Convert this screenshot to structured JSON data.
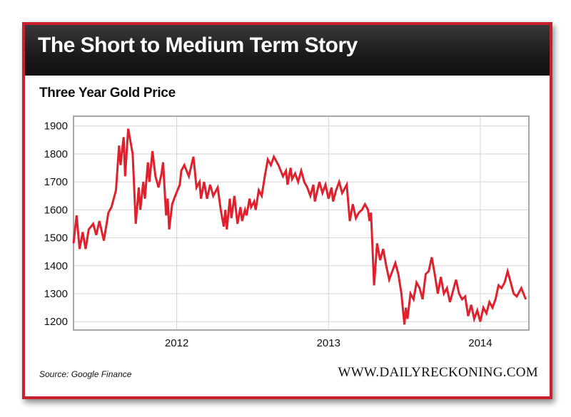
{
  "header": {
    "title": "The Short to Medium Term Story"
  },
  "footer": {
    "source": "Source:  Google Finance",
    "site": "WWW.DAILYRECKONING.COM"
  },
  "colors": {
    "line": "#e0202c",
    "border": "#c8202c",
    "grid": "#a8a8a8",
    "header_bg": "#1a1a1a"
  },
  "chart_data": {
    "type": "line",
    "title": "Three Year Gold Price",
    "xlabel": "",
    "ylabel": "",
    "ylim": [
      1170,
      1935
    ],
    "yticks": [
      1900,
      1800,
      1700,
      1600,
      1500,
      1400,
      1300,
      1200
    ],
    "xlim": [
      2011.32,
      2014.32
    ],
    "xticks": [
      {
        "label": "2012",
        "x": 2012.0
      },
      {
        "label": "2013",
        "x": 2013.0
      },
      {
        "label": "2014",
        "x": 2014.0
      }
    ],
    "grid": true,
    "series": [
      {
        "values": [
          [
            2011.32,
            1480
          ],
          [
            2011.34,
            1580
          ],
          [
            2011.36,
            1460
          ],
          [
            2011.38,
            1520
          ],
          [
            2011.4,
            1460
          ],
          [
            2011.42,
            1530
          ],
          [
            2011.45,
            1550
          ],
          [
            2011.47,
            1510
          ],
          [
            2011.49,
            1560
          ],
          [
            2011.52,
            1490
          ],
          [
            2011.55,
            1590
          ],
          [
            2011.57,
            1610
          ],
          [
            2011.6,
            1670
          ],
          [
            2011.62,
            1830
          ],
          [
            2011.63,
            1760
          ],
          [
            2011.65,
            1860
          ],
          [
            2011.66,
            1720
          ],
          [
            2011.68,
            1890
          ],
          [
            2011.71,
            1800
          ],
          [
            2011.73,
            1550
          ],
          [
            2011.75,
            1680
          ],
          [
            2011.76,
            1600
          ],
          [
            2011.78,
            1700
          ],
          [
            2011.79,
            1640
          ],
          [
            2011.81,
            1770
          ],
          [
            2011.82,
            1700
          ],
          [
            2011.84,
            1810
          ],
          [
            2011.86,
            1720
          ],
          [
            2011.88,
            1680
          ],
          [
            2011.9,
            1730
          ],
          [
            2011.91,
            1770
          ],
          [
            2011.93,
            1580
          ],
          [
            2011.94,
            1640
          ],
          [
            2011.95,
            1530
          ],
          [
            2011.97,
            1620
          ],
          [
            2011.99,
            1650
          ],
          [
            2012.02,
            1690
          ],
          [
            2012.03,
            1740
          ],
          [
            2012.05,
            1760
          ],
          [
            2012.08,
            1720
          ],
          [
            2012.11,
            1790
          ],
          [
            2012.13,
            1680
          ],
          [
            2012.15,
            1700
          ],
          [
            2012.16,
            1640
          ],
          [
            2012.18,
            1700
          ],
          [
            2012.2,
            1640
          ],
          [
            2012.22,
            1690
          ],
          [
            2012.24,
            1650
          ],
          [
            2012.27,
            1680
          ],
          [
            2012.29,
            1600
          ],
          [
            2012.31,
            1540
          ],
          [
            2012.32,
            1600
          ],
          [
            2012.33,
            1530
          ],
          [
            2012.35,
            1640
          ],
          [
            2012.36,
            1570
          ],
          [
            2012.38,
            1650
          ],
          [
            2012.4,
            1550
          ],
          [
            2012.42,
            1610
          ],
          [
            2012.43,
            1560
          ],
          [
            2012.45,
            1600
          ],
          [
            2012.46,
            1580
          ],
          [
            2012.48,
            1640
          ],
          [
            2012.49,
            1610
          ],
          [
            2012.51,
            1630
          ],
          [
            2012.52,
            1600
          ],
          [
            2012.54,
            1670
          ],
          [
            2012.56,
            1650
          ],
          [
            2012.58,
            1720
          ],
          [
            2012.6,
            1780
          ],
          [
            2012.62,
            1760
          ],
          [
            2012.64,
            1790
          ],
          [
            2012.67,
            1760
          ],
          [
            2012.7,
            1720
          ],
          [
            2012.72,
            1740
          ],
          [
            2012.73,
            1690
          ],
          [
            2012.75,
            1750
          ],
          [
            2012.76,
            1710
          ],
          [
            2012.78,
            1730
          ],
          [
            2012.8,
            1700
          ],
          [
            2012.82,
            1740
          ],
          [
            2012.84,
            1700
          ],
          [
            2012.86,
            1680
          ],
          [
            2012.88,
            1650
          ],
          [
            2012.9,
            1690
          ],
          [
            2012.91,
            1630
          ],
          [
            2012.94,
            1700
          ],
          [
            2012.96,
            1660
          ],
          [
            2012.98,
            1690
          ],
          [
            2013.0,
            1640
          ],
          [
            2013.02,
            1680
          ],
          [
            2013.03,
            1630
          ],
          [
            2013.05,
            1670
          ],
          [
            2013.07,
            1700
          ],
          [
            2013.09,
            1660
          ],
          [
            2013.12,
            1690
          ],
          [
            2013.14,
            1560
          ],
          [
            2013.16,
            1620
          ],
          [
            2013.18,
            1570
          ],
          [
            2013.2,
            1590
          ],
          [
            2013.22,
            1600
          ],
          [
            2013.24,
            1620
          ],
          [
            2013.26,
            1600
          ],
          [
            2013.27,
            1560
          ],
          [
            2013.28,
            1590
          ],
          [
            2013.3,
            1330
          ],
          [
            2013.32,
            1480
          ],
          [
            2013.34,
            1420
          ],
          [
            2013.36,
            1460
          ],
          [
            2013.38,
            1400
          ],
          [
            2013.4,
            1350
          ],
          [
            2013.42,
            1380
          ],
          [
            2013.44,
            1410
          ],
          [
            2013.46,
            1370
          ],
          [
            2013.48,
            1300
          ],
          [
            2013.5,
            1190
          ],
          [
            2013.51,
            1250
          ],
          [
            2013.52,
            1210
          ],
          [
            2013.54,
            1300
          ],
          [
            2013.56,
            1280
          ],
          [
            2013.58,
            1340
          ],
          [
            2013.6,
            1320
          ],
          [
            2013.62,
            1280
          ],
          [
            2013.64,
            1370
          ],
          [
            2013.66,
            1380
          ],
          [
            2013.68,
            1430
          ],
          [
            2013.7,
            1370
          ],
          [
            2013.72,
            1300
          ],
          [
            2013.74,
            1360
          ],
          [
            2013.76,
            1300
          ],
          [
            2013.78,
            1320
          ],
          [
            2013.8,
            1270
          ],
          [
            2013.82,
            1310
          ],
          [
            2013.84,
            1350
          ],
          [
            2013.86,
            1300
          ],
          [
            2013.88,
            1280
          ],
          [
            2013.9,
            1290
          ],
          [
            2013.92,
            1220
          ],
          [
            2013.94,
            1260
          ],
          [
            2013.96,
            1210
          ],
          [
            2013.98,
            1240
          ],
          [
            2014.0,
            1200
          ],
          [
            2014.02,
            1250
          ],
          [
            2014.04,
            1230
          ],
          [
            2014.06,
            1270
          ],
          [
            2014.08,
            1250
          ],
          [
            2014.1,
            1280
          ],
          [
            2014.12,
            1330
          ],
          [
            2014.14,
            1320
          ],
          [
            2014.16,
            1340
          ],
          [
            2014.18,
            1380
          ],
          [
            2014.2,
            1340
          ],
          [
            2014.22,
            1300
          ],
          [
            2014.24,
            1290
          ],
          [
            2014.27,
            1320
          ],
          [
            2014.3,
            1280
          ]
        ]
      }
    ]
  }
}
